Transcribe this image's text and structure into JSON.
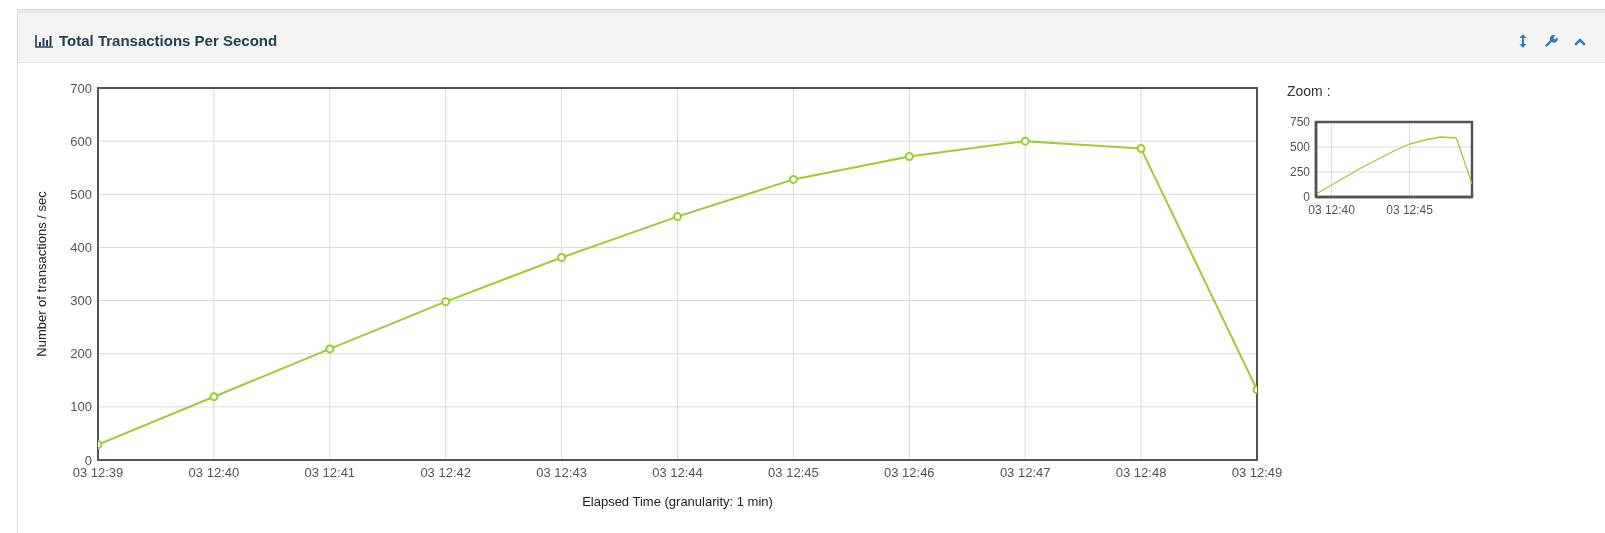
{
  "chart_data": [
    {
      "type": "line",
      "title": "Total Transactions Per Second",
      "xlabel": "Elapsed Time (granularity: 1 min)",
      "ylabel": "Number of transactions / sec",
      "categories": [
        "03 12:39",
        "03 12:40",
        "03 12:41",
        "03 12:42",
        "03 12:43",
        "03 12:44",
        "03 12:45",
        "03 12:46",
        "03 12:47",
        "03 12:48",
        "03 12:49"
      ],
      "values": [
        29,
        119,
        209,
        298,
        381,
        458,
        528,
        571,
        600,
        586,
        132
      ],
      "color": "#9acd32",
      "ylim": [
        0,
        700
      ],
      "yticks": [
        0,
        100,
        200,
        300,
        400,
        500,
        600,
        700
      ],
      "grid": true,
      "marker": "circle"
    },
    {
      "type": "line",
      "title": "Zoom :",
      "categories": [
        null,
        "03 12:40",
        null,
        null,
        null,
        null,
        "03 12:45",
        null,
        null,
        null,
        null
      ],
      "values": [
        30,
        120,
        210,
        300,
        380,
        460,
        530,
        570,
        600,
        590,
        130
      ],
      "color": "#9acd32",
      "ylim": [
        0,
        750
      ],
      "yticks": [
        0,
        250,
        500,
        750
      ],
      "grid": true,
      "marker": "none"
    }
  ]
}
